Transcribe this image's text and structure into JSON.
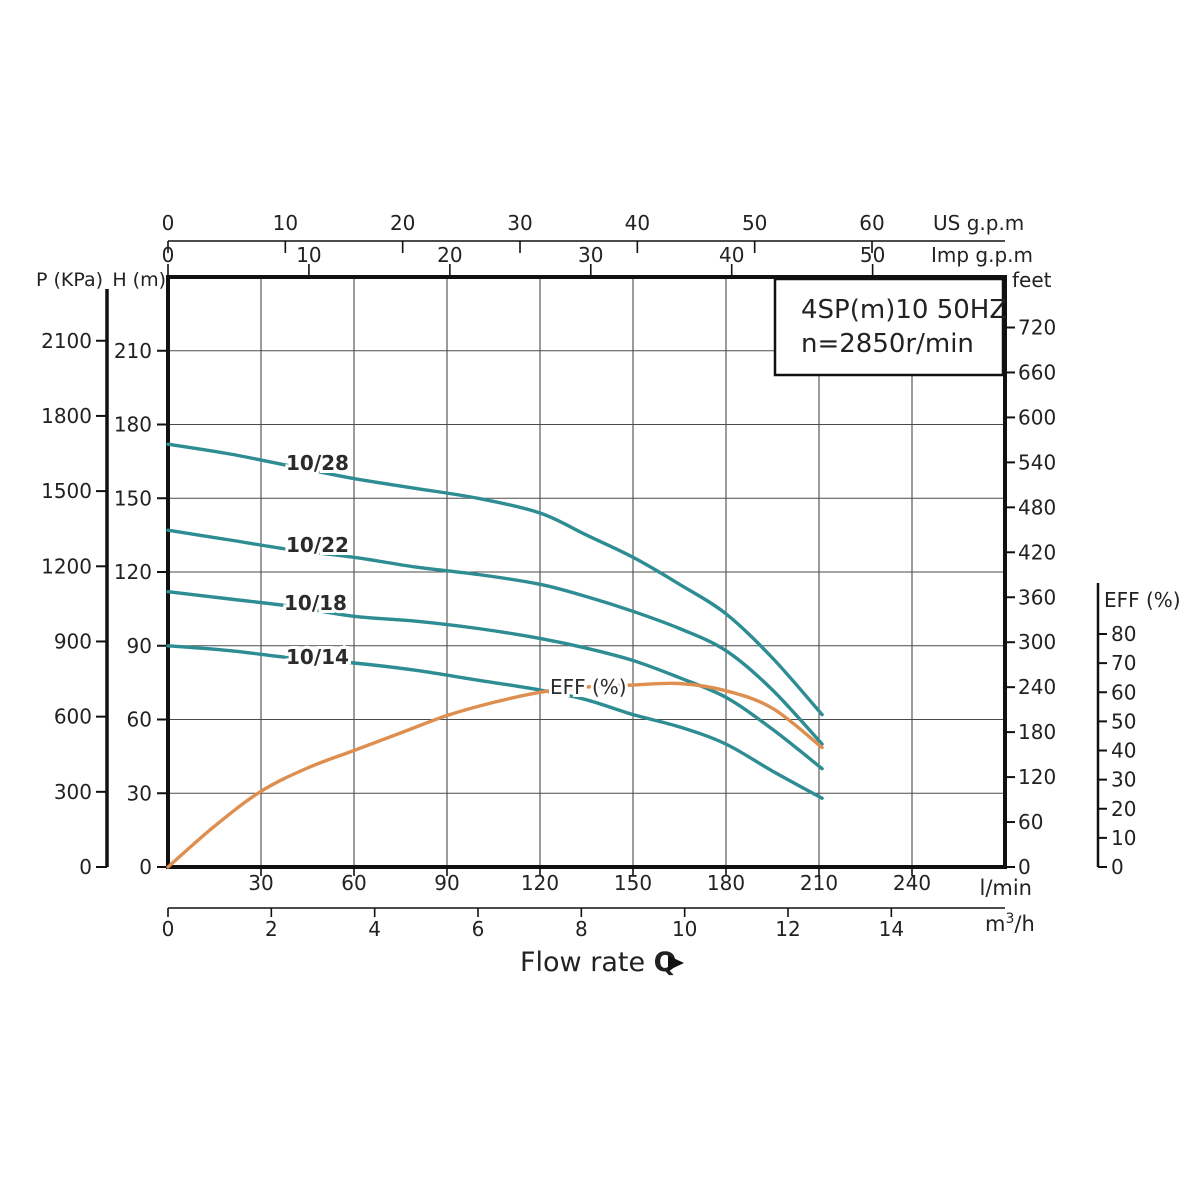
{
  "title_box": {
    "line1": "4SP(m)10  50HZ",
    "line2": "n=2850r/min"
  },
  "labels": {
    "pressure_axis": "P (KPa)",
    "head_axis": "H (m)",
    "us_gpm": "US g.p.m",
    "imp_gpm": "Imp g.p.m",
    "feet": "feet",
    "lmin": "l/min",
    "m3h_base": "m",
    "m3h_sup": "3",
    "m3h_rest": "/h",
    "eff_axis": "EFF (%)",
    "eff_annotation": "EFF (%)",
    "flow_rate": "Flow rate ",
    "flow_rate_q": "Q"
  },
  "colors": {
    "curve_teal": "#2E8C93",
    "curve_orange": "#DE8F4F",
    "grid": "#4B4B4B",
    "axis": "#111111",
    "text": "#222222",
    "curve_label": "#2B2B2B"
  },
  "chart_data": {
    "type": "line",
    "title": "4SP(m)10  50HZ",
    "subtitle": "n=2850r/min",
    "xlabel": "Flow rate Q",
    "grid": true,
    "x_axis_primary": {
      "label": "l/min",
      "range": [
        0,
        270
      ],
      "ticks": [
        30,
        60,
        90,
        120,
        150,
        180,
        210,
        240
      ]
    },
    "x_axes_secondary": [
      {
        "label": "m³/h",
        "ticks": [
          0,
          2,
          4,
          6,
          8,
          10,
          12,
          14
        ]
      },
      {
        "label": "US g.p.m",
        "ticks": [
          0,
          10,
          20,
          30,
          40,
          50,
          60
        ]
      },
      {
        "label": "Imp g.p.m",
        "ticks": [
          0,
          10,
          20,
          30,
          40,
          50
        ]
      }
    ],
    "y_axis_primary": {
      "label": "H (m)",
      "range": [
        0,
        240
      ],
      "ticks": [
        0,
        30,
        60,
        90,
        120,
        150,
        180,
        210
      ]
    },
    "y_axes_secondary": [
      {
        "label": "P (KPa)",
        "ticks": [
          0,
          300,
          600,
          900,
          1200,
          1500,
          1800,
          2100
        ]
      },
      {
        "label": "feet",
        "ticks": [
          0,
          60,
          120,
          180,
          240,
          300,
          360,
          420,
          480,
          540,
          600,
          660,
          720
        ]
      },
      {
        "label": "EFF (%)",
        "range": [
          0,
          80
        ],
        "ticks": [
          0,
          10,
          20,
          30,
          40,
          50,
          60,
          70,
          80
        ]
      }
    ],
    "series": [
      {
        "name": "10/28",
        "unit": "H (m) vs l/min",
        "axis": "head",
        "points": [
          [
            0,
            172
          ],
          [
            20,
            168
          ],
          [
            40,
            163
          ],
          [
            60,
            158
          ],
          [
            80,
            154
          ],
          [
            100,
            150
          ],
          [
            120,
            144
          ],
          [
            135,
            135
          ],
          [
            150,
            126
          ],
          [
            165,
            115
          ],
          [
            180,
            103
          ],
          [
            195,
            85
          ],
          [
            211,
            62
          ]
        ]
      },
      {
        "name": "10/22",
        "unit": "H (m) vs l/min",
        "axis": "head",
        "points": [
          [
            0,
            137
          ],
          [
            20,
            133
          ],
          [
            40,
            129
          ],
          [
            60,
            126
          ],
          [
            80,
            122
          ],
          [
            100,
            119
          ],
          [
            120,
            115
          ],
          [
            135,
            110
          ],
          [
            150,
            104
          ],
          [
            165,
            97
          ],
          [
            180,
            88
          ],
          [
            195,
            72
          ],
          [
            211,
            50
          ]
        ]
      },
      {
        "name": "10/18",
        "unit": "H (m) vs l/min",
        "axis": "head",
        "points": [
          [
            0,
            112
          ],
          [
            20,
            109
          ],
          [
            40,
            106
          ],
          [
            60,
            102
          ],
          [
            80,
            100
          ],
          [
            100,
            97
          ],
          [
            120,
            93
          ],
          [
            135,
            89
          ],
          [
            150,
            84
          ],
          [
            165,
            77
          ],
          [
            180,
            69
          ],
          [
            195,
            56
          ],
          [
            211,
            40
          ]
        ]
      },
      {
        "name": "10/14",
        "unit": "H (m) vs l/min",
        "axis": "head",
        "points": [
          [
            0,
            90
          ],
          [
            20,
            88
          ],
          [
            40,
            85
          ],
          [
            60,
            83
          ],
          [
            80,
            80
          ],
          [
            100,
            76
          ],
          [
            120,
            72
          ],
          [
            135,
            68
          ],
          [
            150,
            62
          ],
          [
            165,
            57
          ],
          [
            180,
            50
          ],
          [
            195,
            39
          ],
          [
            211,
            28
          ]
        ]
      },
      {
        "name": "EFF (%)",
        "unit": "EFF (%) vs l/min",
        "axis": "eff",
        "points": [
          [
            0,
            0
          ],
          [
            15,
            14
          ],
          [
            30,
            26
          ],
          [
            45,
            34
          ],
          [
            60,
            40
          ],
          [
            75,
            46
          ],
          [
            90,
            52
          ],
          [
            105,
            56.5
          ],
          [
            120,
            60
          ],
          [
            135,
            61.8
          ],
          [
            150,
            62.5
          ],
          [
            165,
            63
          ],
          [
            180,
            60.5
          ],
          [
            195,
            54.5
          ],
          [
            211,
            41
          ]
        ]
      }
    ]
  }
}
